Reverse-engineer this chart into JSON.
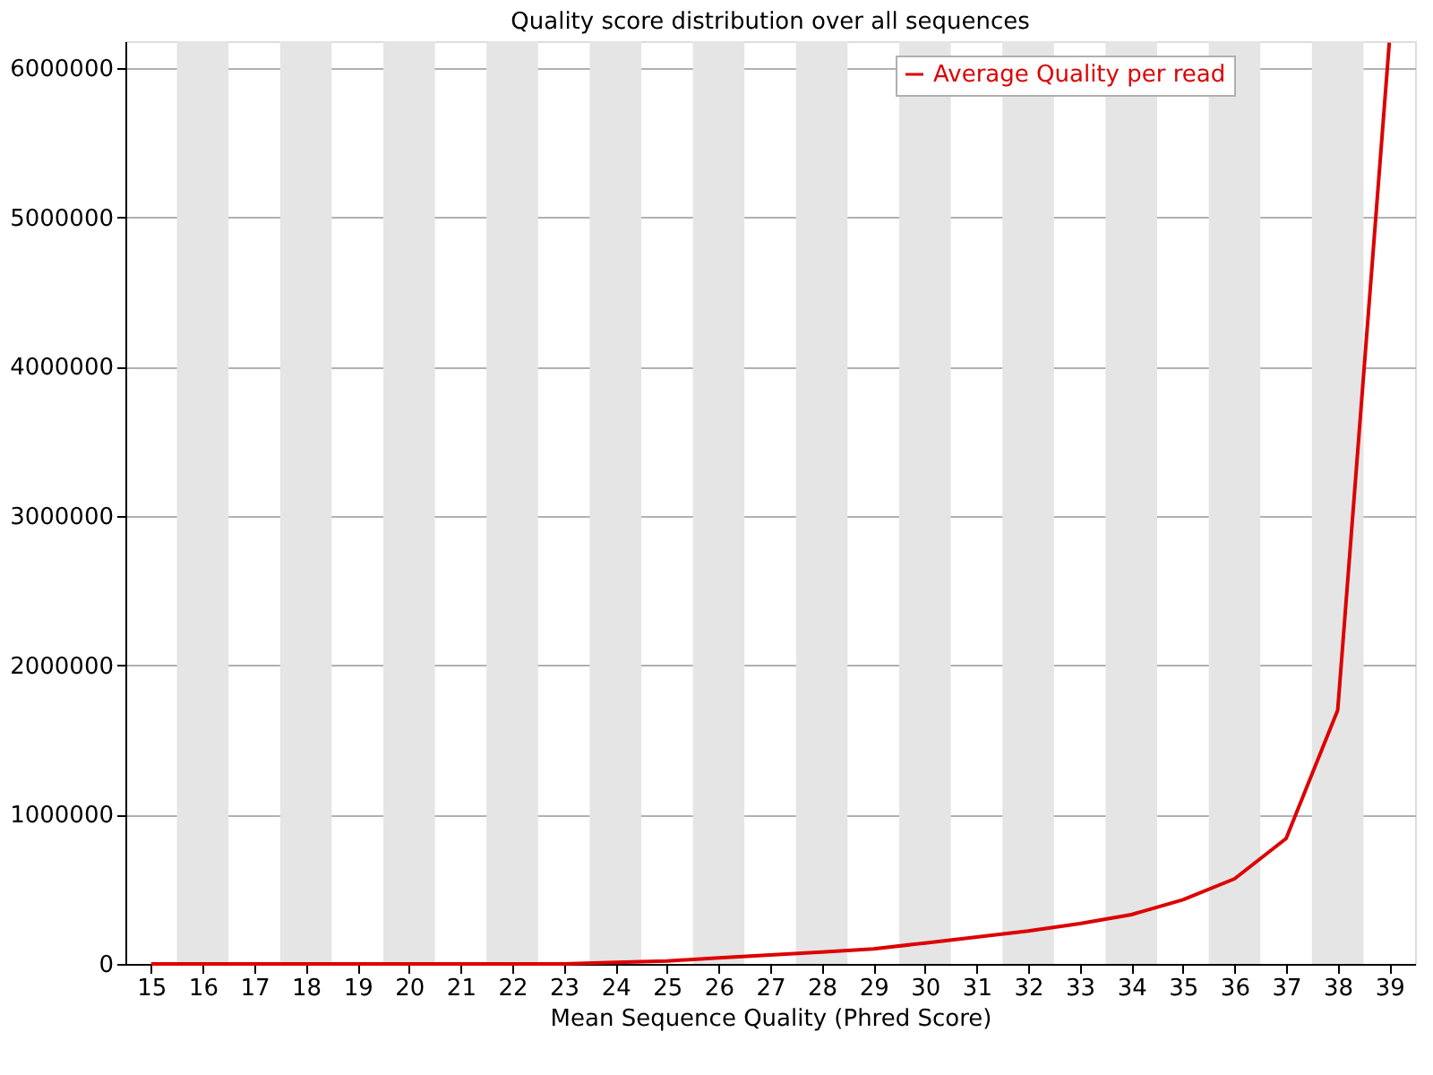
{
  "chart_data": {
    "type": "line",
    "title": "Quality score distribution over all sequences",
    "xlabel": "Mean Sequence Quality (Phred Score)",
    "x": [
      15,
      16,
      17,
      18,
      19,
      20,
      21,
      22,
      23,
      24,
      25,
      26,
      27,
      28,
      29,
      30,
      31,
      32,
      33,
      34,
      35,
      36,
      37,
      38,
      39
    ],
    "series": [
      {
        "name": "Average Quality per read",
        "color": "#dd0000",
        "values": [
          0,
          0,
          0,
          0,
          0,
          0,
          0,
          0,
          0,
          10000,
          20000,
          40000,
          60000,
          80000,
          100000,
          140000,
          180000,
          220000,
          270000,
          330000,
          430000,
          570000,
          840000,
          1700000,
          6170000
        ]
      }
    ],
    "xlim": [
      14.5,
      39.5
    ],
    "xticks": [
      15,
      16,
      17,
      18,
      19,
      20,
      21,
      22,
      23,
      24,
      25,
      26,
      27,
      28,
      29,
      30,
      31,
      32,
      33,
      34,
      35,
      36,
      37,
      38,
      39
    ],
    "ylim": [
      0,
      6180000
    ],
    "yticks": [
      0,
      1000000,
      2000000,
      3000000,
      4000000,
      5000000,
      6000000
    ],
    "grid": "y",
    "legend": "top right",
    "bands": [
      {
        "axis": "x",
        "from": 15.5,
        "to": 16.5,
        "color": "#e5e5e5"
      },
      {
        "axis": "x",
        "from": 17.5,
        "to": 18.5,
        "color": "#e5e5e5"
      },
      {
        "axis": "x",
        "from": 19.5,
        "to": 20.5,
        "color": "#e5e5e5"
      },
      {
        "axis": "x",
        "from": 21.5,
        "to": 22.5,
        "color": "#e5e5e5"
      },
      {
        "axis": "x",
        "from": 23.5,
        "to": 24.5,
        "color": "#e5e5e5"
      },
      {
        "axis": "x",
        "from": 25.5,
        "to": 26.5,
        "color": "#e5e5e5"
      },
      {
        "axis": "x",
        "from": 27.5,
        "to": 28.5,
        "color": "#e5e5e5"
      },
      {
        "axis": "x",
        "from": 29.5,
        "to": 30.5,
        "color": "#e5e5e5"
      },
      {
        "axis": "x",
        "from": 31.5,
        "to": 32.5,
        "color": "#e5e5e5"
      },
      {
        "axis": "x",
        "from": 33.5,
        "to": 34.5,
        "color": "#e5e5e5"
      },
      {
        "axis": "x",
        "from": 35.5,
        "to": 36.5,
        "color": "#e5e5e5"
      },
      {
        "axis": "x",
        "from": 37.5,
        "to": 38.5,
        "color": "#e5e5e5"
      }
    ]
  }
}
